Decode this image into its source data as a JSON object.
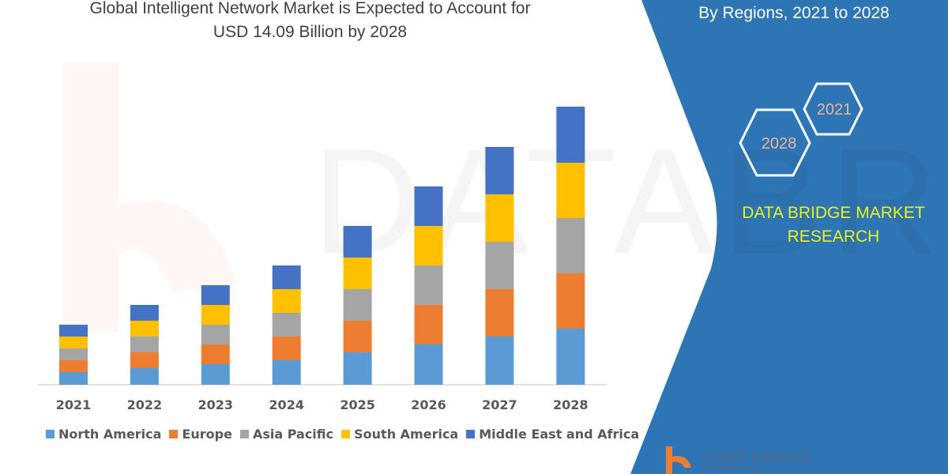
{
  "chart_data": {
    "type": "bar",
    "stacked": true,
    "title": "Global Intelligent Network Market is Expected to Account for USD 14.09 Billion by 2028",
    "title_lines": [
      "Global Intelligent Network Market is Expected to Account for",
      "USD 14.09 Billion by 2028"
    ],
    "categories": [
      "2021",
      "2022",
      "2023",
      "2024",
      "2025",
      "2026",
      "2027",
      "2028"
    ],
    "series": [
      {
        "name": "North America",
        "color": "#5b9bd5",
        "values": [
          16,
          21,
          26,
          31,
          41,
          51,
          61,
          71
        ]
      },
      {
        "name": "Europe",
        "color": "#ed7d31",
        "values": [
          15,
          20,
          25,
          30,
          40,
          50,
          60,
          70
        ]
      },
      {
        "name": "Asia Pacific",
        "color": "#a5a5a5",
        "values": [
          15,
          20,
          25,
          30,
          40,
          50,
          60,
          70
        ]
      },
      {
        "name": "South America",
        "color": "#ffc000",
        "values": [
          15,
          20,
          25,
          30,
          40,
          50,
          60,
          70
        ]
      },
      {
        "name": "Middle East and Africa",
        "color": "#4472c4",
        "values": [
          15,
          20,
          25,
          30,
          40,
          50,
          60,
          71
        ]
      }
    ],
    "xlabel": "",
    "ylabel": "",
    "y_axis_shown": false,
    "grid": false,
    "legend_position": "bottom"
  },
  "side_panel": {
    "subtitle": "By Regions,  2021 to 2028",
    "hex_labels": [
      "2021",
      "2028"
    ],
    "brand_lines": [
      "DATA BRIDGE MARKET",
      "RESEARCH"
    ],
    "logo_text": "DATA BRIDGE",
    "panel_color": "#2e75b6",
    "brand_color": "#e6f21e"
  },
  "watermark": {
    "text": "DATABRIDGE"
  }
}
